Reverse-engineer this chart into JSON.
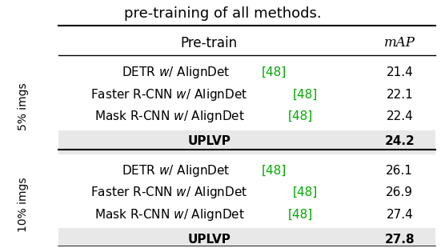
{
  "title": "pre-training of all methods.",
  "title_fontsize": 13,
  "col_headers": [
    "Pre-train",
    "mAP"
  ],
  "col_header_fontsize": 12,
  "rows_5pct": [
    {
      "pretrain": "DETR",
      "italic_w": true,
      "aligndet": "AlignDet",
      "ref": "[48]",
      "map": "21.4",
      "bold": false
    },
    {
      "pretrain": "Faster R-CNN",
      "italic_w": true,
      "aligndet": "AlignDet",
      "ref": "[48]",
      "map": "22.1",
      "bold": false
    },
    {
      "pretrain": "Mask R-CNN",
      "italic_w": true,
      "aligndet": "AlignDet",
      "ref": "[48]",
      "map": "22.4",
      "bold": false
    },
    {
      "pretrain": "UPLVP",
      "map": "24.2",
      "bold": true
    }
  ],
  "rows_10pct": [
    {
      "pretrain": "DETR",
      "italic_w": true,
      "aligndet": "AlignDet",
      "ref": "[48]",
      "map": "26.1",
      "bold": false
    },
    {
      "pretrain": "Faster R-CNN",
      "italic_w": true,
      "aligndet": "AlignDet",
      "ref": "[48]",
      "map": "26.9",
      "bold": false
    },
    {
      "pretrain": "Mask R-CNN",
      "italic_w": true,
      "aligndet": "AlignDet",
      "ref": "[48]",
      "map": "27.4",
      "bold": false
    },
    {
      "pretrain": "UPLVP",
      "map": "27.8",
      "bold": true
    }
  ],
  "group_labels": [
    "5% imgs",
    "10% imgs"
  ],
  "highlight_color": "#e8e8e8",
  "green_color": "#00aa00",
  "text_color": "#000000",
  "bg_color": "#ffffff",
  "row_fontsize": 11,
  "sidebar_fontsize": 10
}
